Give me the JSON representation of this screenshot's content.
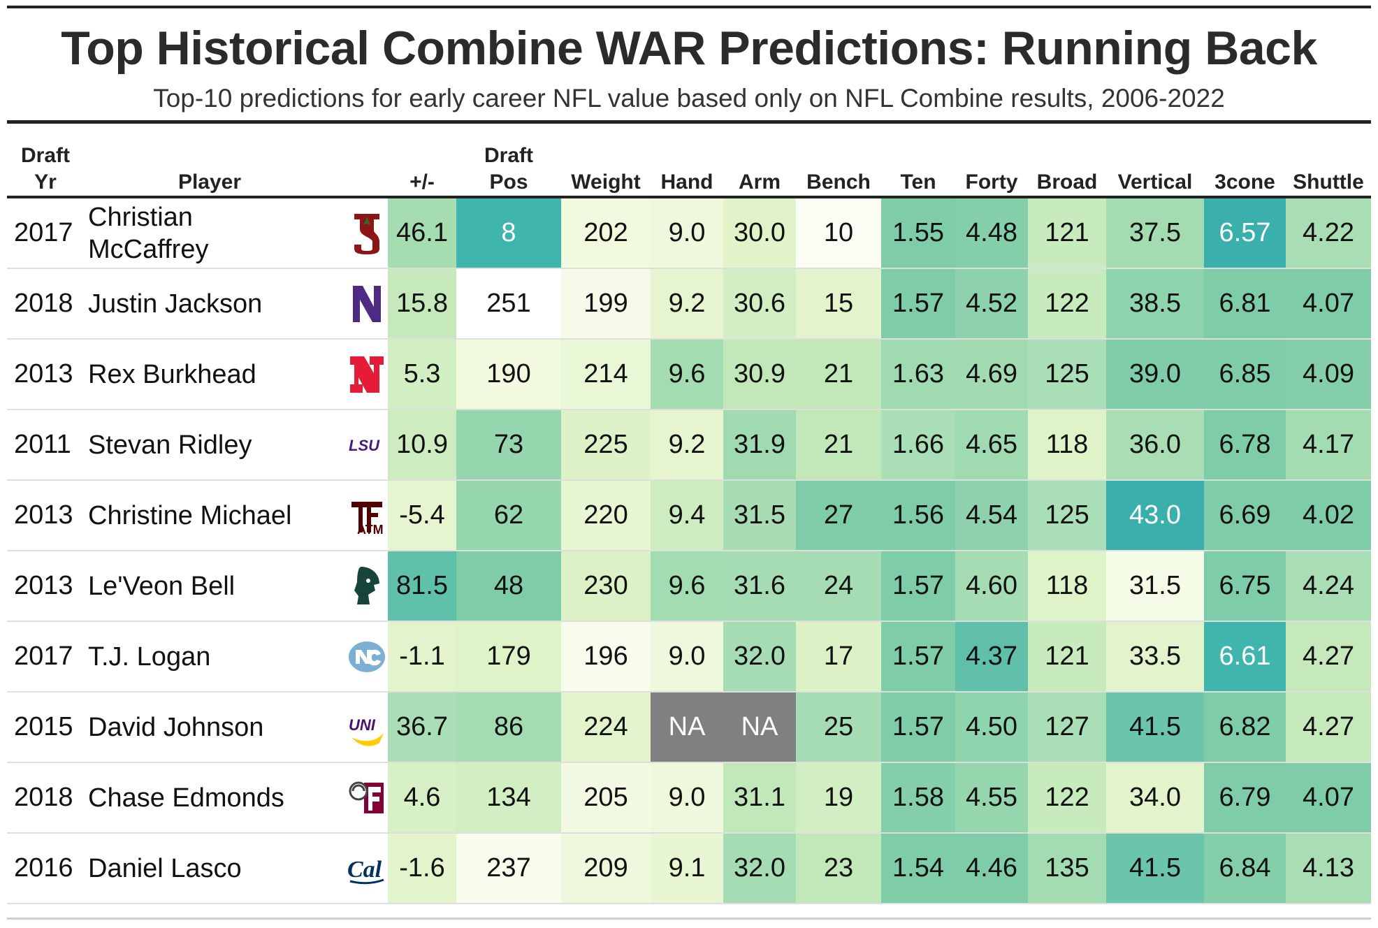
{
  "chart_data": {
    "type": "table",
    "title": "Top Historical Combine WAR Predictions: Running Back",
    "subtitle": "Top-10 predictions for early career NFL value based only on NFL Combine results, 2006-2022",
    "columns": [
      {
        "key": "year",
        "label1": "Draft",
        "label2": "Yr"
      },
      {
        "key": "player",
        "label1": "",
        "label2": "Player"
      },
      {
        "key": "logo",
        "label1": "",
        "label2": ""
      },
      {
        "key": "pm",
        "label1": "",
        "label2": "+/-"
      },
      {
        "key": "pos",
        "label1": "Draft",
        "label2": "Pos"
      },
      {
        "key": "weight",
        "label1": "",
        "label2": "Weight"
      },
      {
        "key": "hand",
        "label1": "",
        "label2": "Hand"
      },
      {
        "key": "arm",
        "label1": "",
        "label2": "Arm"
      },
      {
        "key": "bench",
        "label1": "",
        "label2": "Bench"
      },
      {
        "key": "ten",
        "label1": "",
        "label2": "Ten"
      },
      {
        "key": "forty",
        "label1": "",
        "label2": "Forty"
      },
      {
        "key": "broad",
        "label1": "",
        "label2": "Broad"
      },
      {
        "key": "vertical",
        "label1": "",
        "label2": "Vertical"
      },
      {
        "key": "cone",
        "label1": "",
        "label2": "3cone"
      },
      {
        "key": "shuttle",
        "label1": "",
        "label2": "Shuttle"
      }
    ],
    "rows": [
      {
        "year": "2017",
        "player": "Christian McCaffrey",
        "school_logo": "stanford-logo",
        "pm": "46.1",
        "pos": "8",
        "weight": "202",
        "hand": "9.0",
        "arm": "30.0",
        "bench": "10",
        "ten": "1.55",
        "forty": "4.48",
        "broad": "121",
        "vertical": "37.5",
        "cone": "6.57",
        "shuttle": "4.22"
      },
      {
        "year": "2018",
        "player": "Justin Jackson",
        "school_logo": "northwestern-logo",
        "pm": "15.8",
        "pos": "251",
        "weight": "199",
        "hand": "9.2",
        "arm": "30.6",
        "bench": "15",
        "ten": "1.57",
        "forty": "4.52",
        "broad": "122",
        "vertical": "38.5",
        "cone": "6.81",
        "shuttle": "4.07"
      },
      {
        "year": "2013",
        "player": "Rex Burkhead",
        "school_logo": "nebraska-logo",
        "pm": "5.3",
        "pos": "190",
        "weight": "214",
        "hand": "9.6",
        "arm": "30.9",
        "bench": "21",
        "ten": "1.63",
        "forty": "4.69",
        "broad": "125",
        "vertical": "39.0",
        "cone": "6.85",
        "shuttle": "4.09"
      },
      {
        "year": "2011",
        "player": "Stevan Ridley",
        "school_logo": "lsu-logo",
        "pm": "10.9",
        "pos": "73",
        "weight": "225",
        "hand": "9.2",
        "arm": "31.9",
        "bench": "21",
        "ten": "1.66",
        "forty": "4.65",
        "broad": "118",
        "vertical": "36.0",
        "cone": "6.78",
        "shuttle": "4.17"
      },
      {
        "year": "2013",
        "player": "Christine Michael",
        "school_logo": "texas-am-logo",
        "pm": "-5.4",
        "pos": "62",
        "weight": "220",
        "hand": "9.4",
        "arm": "31.5",
        "bench": "27",
        "ten": "1.56",
        "forty": "4.54",
        "broad": "125",
        "vertical": "43.0",
        "cone": "6.69",
        "shuttle": "4.02"
      },
      {
        "year": "2013",
        "player": "Le'Veon Bell",
        "school_logo": "michigan-state-logo",
        "pm": "81.5",
        "pos": "48",
        "weight": "230",
        "hand": "9.6",
        "arm": "31.6",
        "bench": "24",
        "ten": "1.57",
        "forty": "4.60",
        "broad": "118",
        "vertical": "31.5",
        "cone": "6.75",
        "shuttle": "4.24"
      },
      {
        "year": "2017",
        "player": "T.J. Logan",
        "school_logo": "north-carolina-logo",
        "pm": "-1.1",
        "pos": "179",
        "weight": "196",
        "hand": "9.0",
        "arm": "32.0",
        "bench": "17",
        "ten": "1.57",
        "forty": "4.37",
        "broad": "121",
        "vertical": "33.5",
        "cone": "6.61",
        "shuttle": "4.27"
      },
      {
        "year": "2015",
        "player": "David Johnson",
        "school_logo": "northern-iowa-logo",
        "pm": "36.7",
        "pos": "86",
        "weight": "224",
        "hand": "NA",
        "arm": "NA",
        "bench": "25",
        "ten": "1.57",
        "forty": "4.50",
        "broad": "127",
        "vertical": "41.5",
        "cone": "6.82",
        "shuttle": "4.27"
      },
      {
        "year": "2018",
        "player": "Chase Edmonds",
        "school_logo": "fordham-logo",
        "pm": "4.6",
        "pos": "134",
        "weight": "205",
        "hand": "9.0",
        "arm": "31.1",
        "bench": "19",
        "ten": "1.58",
        "forty": "4.55",
        "broad": "122",
        "vertical": "34.0",
        "cone": "6.79",
        "shuttle": "4.07"
      },
      {
        "year": "2016",
        "player": "Daniel Lasco",
        "school_logo": "cal-logo",
        "pm": "-1.6",
        "pos": "237",
        "weight": "209",
        "hand": "9.1",
        "arm": "32.0",
        "bench": "23",
        "ten": "1.54",
        "forty": "4.46",
        "broad": "135",
        "vertical": "41.5",
        "cone": "6.84",
        "shuttle": "4.13"
      }
    ],
    "cell_colors": [
      [
        "#a5dcb0",
        "#3fb5ad",
        "#f1f9df",
        "#eef8dc",
        "#e0f3c9",
        "#fbfdf5",
        "#7fcca9",
        "#84cfaa",
        "#c8ebbd",
        "#a4dcb2",
        "#3aafab",
        "#a9ddb3"
      ],
      [
        "#c6e9bc",
        "#ffffff",
        "#f5fbe8",
        "#e6f5cf",
        "#d2eec3",
        "#e3f4cd",
        "#7fcca9",
        "#8dd2ac",
        "#c8ebbd",
        "#8ed4ad",
        "#7fcca9",
        "#7fcca9"
      ],
      [
        "#d2eec3",
        "#f1f9df",
        "#eaf7d6",
        "#a4dcb2",
        "#c2e8ba",
        "#c2e8ba",
        "#9fdab1",
        "#a2dbb2",
        "#aadeb6",
        "#7fcca9",
        "#7fcca9",
        "#84cfaa"
      ],
      [
        "#cdedc0",
        "#96d6af",
        "#ddf2c7",
        "#e6f5cf",
        "#9fdab1",
        "#c2e8ba",
        "#aadeb6",
        "#a0dab1",
        "#dff3c9",
        "#a9ddb3",
        "#7fcca9",
        "#a4dcb2"
      ],
      [
        "#e6f5cf",
        "#96d6af",
        "#e8f6d3",
        "#cdedc0",
        "#a8ddb3",
        "#7fcca9",
        "#7fcca9",
        "#8dd2ac",
        "#aadeb6",
        "#3aafab",
        "#7fcca9",
        "#7fcca9"
      ],
      [
        "#5fc1aa",
        "#7fcca9",
        "#dcf2c6",
        "#a4dcb2",
        "#a5dcb3",
        "#a5dcb3",
        "#7fcca9",
        "#a5dcb3",
        "#dff3c9",
        "#f4fbe6",
        "#7fcca9",
        "#a9ddb3"
      ],
      [
        "#e3f4cd",
        "#dff3c9",
        "#f7fcec",
        "#eef8dc",
        "#a5dcb3",
        "#dcf2c6",
        "#7fcca9",
        "#5fbfa9",
        "#c8ebbd",
        "#e3f4cd",
        "#3fb5ad",
        "#c6e9bc"
      ],
      [
        "#aadeb6",
        "#a4dcb2",
        "#e3f4cd",
        "#808080",
        "#808080",
        "#a5dcb3",
        "#7fcca9",
        "#8ed4ad",
        "#aadeb6",
        "#6ac5aa",
        "#7fcca9",
        "#c6e9bc"
      ],
      [
        "#d8f0c5",
        "#d2eec3",
        "#f3fae3",
        "#eef8dc",
        "#c2e8ba",
        "#d2eec3",
        "#84cfaa",
        "#96d6af",
        "#c8ebbd",
        "#e3f4cd",
        "#7fcca9",
        "#7fcca9"
      ],
      [
        "#e3f4cd",
        "#f7fcec",
        "#eef8dc",
        "#e8f6d3",
        "#a5dcb3",
        "#c2e8ba",
        "#7fcca9",
        "#7fcca9",
        "#a4dcb2",
        "#6ac5aa",
        "#84cfaa",
        "#a9ddb3"
      ]
    ]
  }
}
